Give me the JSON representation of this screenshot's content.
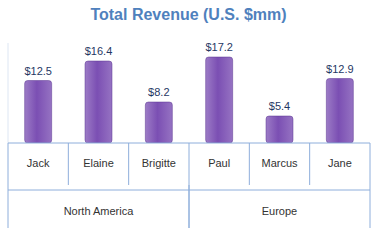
{
  "chart_data": {
    "type": "bar",
    "title": "Total Revenue (U.S. $mm)",
    "categories": [
      "Jack",
      "Elaine",
      "Brigitte",
      "Paul",
      "Marcus",
      "Jane"
    ],
    "category_groups": [
      "North America",
      "North America",
      "North America",
      "Europe",
      "Europe",
      "Europe"
    ],
    "values": [
      12.5,
      16.4,
      8.2,
      17.2,
      5.4,
      12.9
    ],
    "value_labels": [
      "$12.5",
      "$16.4",
      "$8.2",
      "$17.2",
      "$5.4",
      "$12.9"
    ],
    "color": "#7b4fb3",
    "ylim": [
      0,
      20
    ],
    "data_labels": true,
    "tick_labels": "x",
    "grid": false
  }
}
